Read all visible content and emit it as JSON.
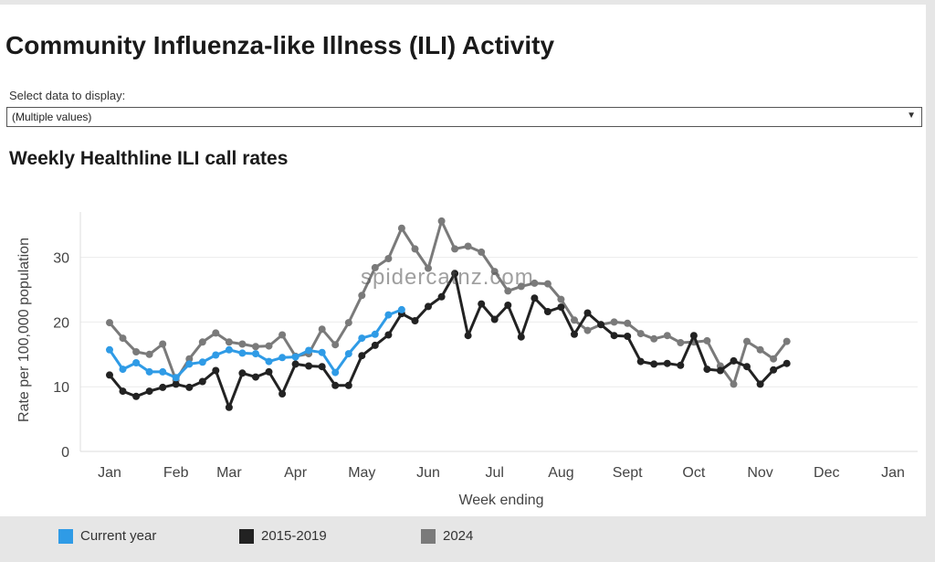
{
  "page": {
    "title": "Community Influenza-like Illness (ILI) Activity",
    "filter_label": "Select data to display:",
    "filter_value": "(Multiple values)",
    "watermark": "spidercatnz.com"
  },
  "colors": {
    "current_year": "#2f9be6",
    "baseline": "#222222",
    "year_2024": "#7a7a7a"
  },
  "chart_data": {
    "type": "line",
    "title": "Weekly Healthline ILI call rates",
    "xlabel": "Week ending",
    "ylabel": "Rate per 100,000 population",
    "ylim": [
      0,
      37
    ],
    "yticks": [
      0,
      10,
      20,
      30
    ],
    "month_ticks": [
      {
        "label": "Jan",
        "week": 1
      },
      {
        "label": "Feb",
        "week": 6
      },
      {
        "label": "Mar",
        "week": 10
      },
      {
        "label": "Apr",
        "week": 15
      },
      {
        "label": "May",
        "week": 20
      },
      {
        "label": "Jun",
        "week": 25
      },
      {
        "label": "Jul",
        "week": 30
      },
      {
        "label": "Aug",
        "week": 35
      },
      {
        "label": "Sept",
        "week": 40
      },
      {
        "label": "Oct",
        "week": 45
      },
      {
        "label": "Nov",
        "week": 50
      },
      {
        "label": "Dec",
        "week": 55
      },
      {
        "label": "Jan",
        "week": 60
      }
    ],
    "weeks": [
      1,
      2,
      3,
      4,
      5,
      6,
      7,
      8,
      9,
      10,
      11,
      12,
      13,
      14,
      15,
      16,
      17,
      18,
      19,
      20,
      21,
      22,
      23,
      24,
      25,
      26,
      27,
      28,
      29,
      30,
      31,
      32,
      33,
      34,
      35,
      36,
      37,
      38,
      39,
      40,
      41,
      42,
      43,
      44,
      45,
      46,
      47,
      48,
      49,
      50,
      51,
      52,
      53,
      54,
      55,
      56,
      57,
      58,
      59,
      60
    ],
    "grid": true,
    "legend_position": "bottom",
    "series": [
      {
        "name": "Current year",
        "color": "#2f9be6",
        "start_week": 1,
        "values": [
          15.7,
          12.7,
          13.7,
          12.3,
          12.3,
          11.4,
          13.5,
          13.8,
          14.9,
          15.7,
          15.2,
          15.1,
          13.9,
          14.5,
          14.6,
          15.6,
          15.3,
          12.2,
          15.1,
          17.5,
          18.1,
          21.1,
          21.9
        ]
      },
      {
        "name": "2015-2019",
        "color": "#222222",
        "start_week": 1,
        "values": [
          11.8,
          9.3,
          8.5,
          9.3,
          9.9,
          10.4,
          9.9,
          10.8,
          12.5,
          6.8,
          12.1,
          11.5,
          12.3,
          8.9,
          13.5,
          13.2,
          13.1,
          10.2,
          10.2,
          14.8,
          16.4,
          18.0,
          21.3,
          20.2,
          22.4,
          23.9,
          27.5,
          17.9,
          22.8,
          20.4,
          22.6,
          17.7,
          23.7,
          21.6,
          22.3,
          18.1,
          21.4,
          19.6,
          17.9,
          17.8,
          13.9,
          13.5,
          13.6,
          13.3,
          17.9,
          12.7,
          12.5,
          14.0,
          13.1,
          10.4,
          12.6,
          13.6
        ]
      },
      {
        "name": "2024",
        "color": "#7a7a7a",
        "start_week": 1,
        "values": [
          19.9,
          17.5,
          15.4,
          15.0,
          16.6,
          11.0,
          14.3,
          16.9,
          18.3,
          16.9,
          16.6,
          16.2,
          16.3,
          18.0,
          14.7,
          15.1,
          18.9,
          16.5,
          19.9,
          24.1,
          28.4,
          29.8,
          34.5,
          31.3,
          28.3,
          35.6,
          31.3,
          31.7,
          30.8,
          27.8,
          24.8,
          25.5,
          26.0,
          25.9,
          23.5,
          20.3,
          18.7,
          19.6,
          20.0,
          19.8,
          18.2,
          17.4,
          17.9,
          16.8,
          16.9,
          17.1,
          13.2,
          10.4,
          17.0,
          15.7,
          14.3,
          17.0
        ]
      }
    ]
  }
}
